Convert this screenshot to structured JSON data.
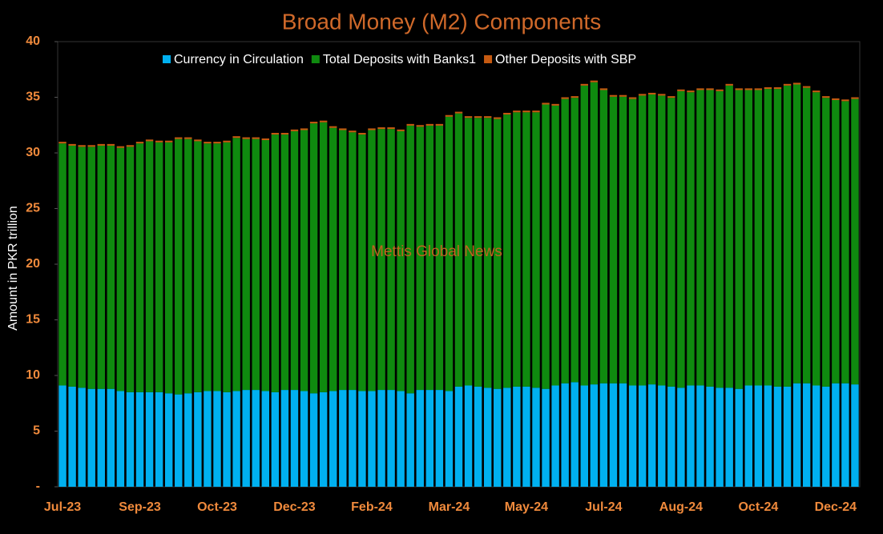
{
  "chart_data": {
    "type": "stacked_bar",
    "title": "Broad Money (M2) Components",
    "ylabel": "Amount in PKR trillion",
    "annotation": "Mettis Global News",
    "legend": "top",
    "categories": [
      "Jul-23",
      null,
      null,
      null,
      null,
      null,
      null,
      null,
      "Sep-23",
      null,
      null,
      null,
      null,
      null,
      null,
      null,
      "Oct-23",
      null,
      null,
      null,
      null,
      null,
      null,
      null,
      "Dec-23",
      null,
      null,
      null,
      null,
      null,
      null,
      null,
      "Feb-24",
      null,
      null,
      null,
      null,
      null,
      null,
      null,
      "Mar-24",
      null,
      null,
      null,
      null,
      null,
      null,
      null,
      "May-24",
      null,
      null,
      null,
      null,
      null,
      null,
      null,
      "Jul-24",
      null,
      null,
      null,
      null,
      null,
      null,
      null,
      "Aug-24",
      null,
      null,
      null,
      null,
      null,
      null,
      null,
      "Oct-24",
      null,
      null,
      null,
      null,
      null,
      null,
      null,
      "Dec-24",
      null,
      null
    ],
    "series": [
      {
        "name": "Currency in Circulation",
        "color": "#00b0f0",
        "values": [
          9.1,
          9.0,
          8.9,
          8.8,
          8.8,
          8.8,
          8.6,
          8.5,
          8.5,
          8.5,
          8.5,
          8.4,
          8.3,
          8.4,
          8.5,
          8.6,
          8.6,
          8.5,
          8.6,
          8.7,
          8.7,
          8.6,
          8.5,
          8.7,
          8.7,
          8.6,
          8.4,
          8.5,
          8.6,
          8.7,
          8.7,
          8.6,
          8.6,
          8.7,
          8.7,
          8.6,
          8.4,
          8.7,
          8.7,
          8.7,
          8.6,
          9.0,
          9.1,
          9.0,
          8.9,
          8.8,
          8.9,
          9.0,
          9.0,
          8.9,
          8.8,
          9.1,
          9.3,
          9.4,
          9.1,
          9.2,
          9.3,
          9.3,
          9.3,
          9.1,
          9.1,
          9.2,
          9.1,
          9.0,
          8.9,
          9.1,
          9.1,
          9.0,
          8.9,
          8.9,
          8.8,
          9.1,
          9.1,
          9.1,
          9.0,
          9.0,
          9.3,
          9.3,
          9.1,
          9.0,
          9.3,
          9.3,
          9.2
        ]
      },
      {
        "name": "Total Deposits with Banks1",
        "color": "#0f8a0f",
        "values": [
          21.75,
          21.65,
          21.65,
          21.75,
          21.85,
          21.85,
          21.85,
          22.05,
          22.35,
          22.55,
          22.45,
          22.55,
          22.95,
          22.85,
          22.55,
          22.25,
          22.25,
          22.45,
          22.75,
          22.55,
          22.55,
          22.55,
          23.15,
          22.95,
          23.25,
          23.45,
          24.25,
          24.25,
          23.65,
          23.35,
          23.15,
          23.05,
          23.45,
          23.45,
          23.45,
          23.35,
          24.05,
          23.65,
          23.75,
          23.75,
          24.65,
          24.55,
          24.05,
          24.15,
          24.25,
          24.25,
          24.55,
          24.65,
          24.65,
          24.75,
          25.55,
          25.15,
          25.55,
          25.55,
          26.95,
          27.15,
          26.35,
          25.75,
          25.75,
          25.75,
          26.05,
          26.05,
          26.05,
          25.95,
          26.65,
          26.35,
          26.55,
          26.65,
          26.65,
          27.15,
          26.85,
          26.55,
          26.55,
          26.65,
          26.75,
          27.05,
          26.85,
          26.55,
          26.35,
          25.95,
          25.45,
          25.35,
          25.65
        ]
      },
      {
        "name": "Other Deposits with SBP",
        "color": "#c55a11",
        "values": [
          0.15,
          0.15,
          0.15,
          0.15,
          0.15,
          0.15,
          0.15,
          0.15,
          0.15,
          0.15,
          0.15,
          0.15,
          0.15,
          0.15,
          0.15,
          0.15,
          0.15,
          0.15,
          0.15,
          0.15,
          0.15,
          0.15,
          0.15,
          0.15,
          0.15,
          0.15,
          0.15,
          0.15,
          0.15,
          0.15,
          0.15,
          0.15,
          0.15,
          0.15,
          0.15,
          0.15,
          0.15,
          0.15,
          0.15,
          0.15,
          0.15,
          0.15,
          0.15,
          0.15,
          0.15,
          0.15,
          0.15,
          0.15,
          0.15,
          0.15,
          0.15,
          0.15,
          0.15,
          0.15,
          0.15,
          0.15,
          0.15,
          0.15,
          0.15,
          0.15,
          0.15,
          0.15,
          0.15,
          0.15,
          0.15,
          0.15,
          0.15,
          0.15,
          0.15,
          0.15,
          0.15,
          0.15,
          0.15,
          0.15,
          0.15,
          0.15,
          0.15,
          0.15,
          0.15,
          0.15,
          0.15,
          0.15,
          0.15
        ]
      }
    ],
    "ylim": [
      0,
      40
    ],
    "yticks": [
      {
        "value": 0,
        "label": "-"
      },
      5,
      10,
      15,
      20,
      25,
      30,
      35,
      40
    ]
  }
}
